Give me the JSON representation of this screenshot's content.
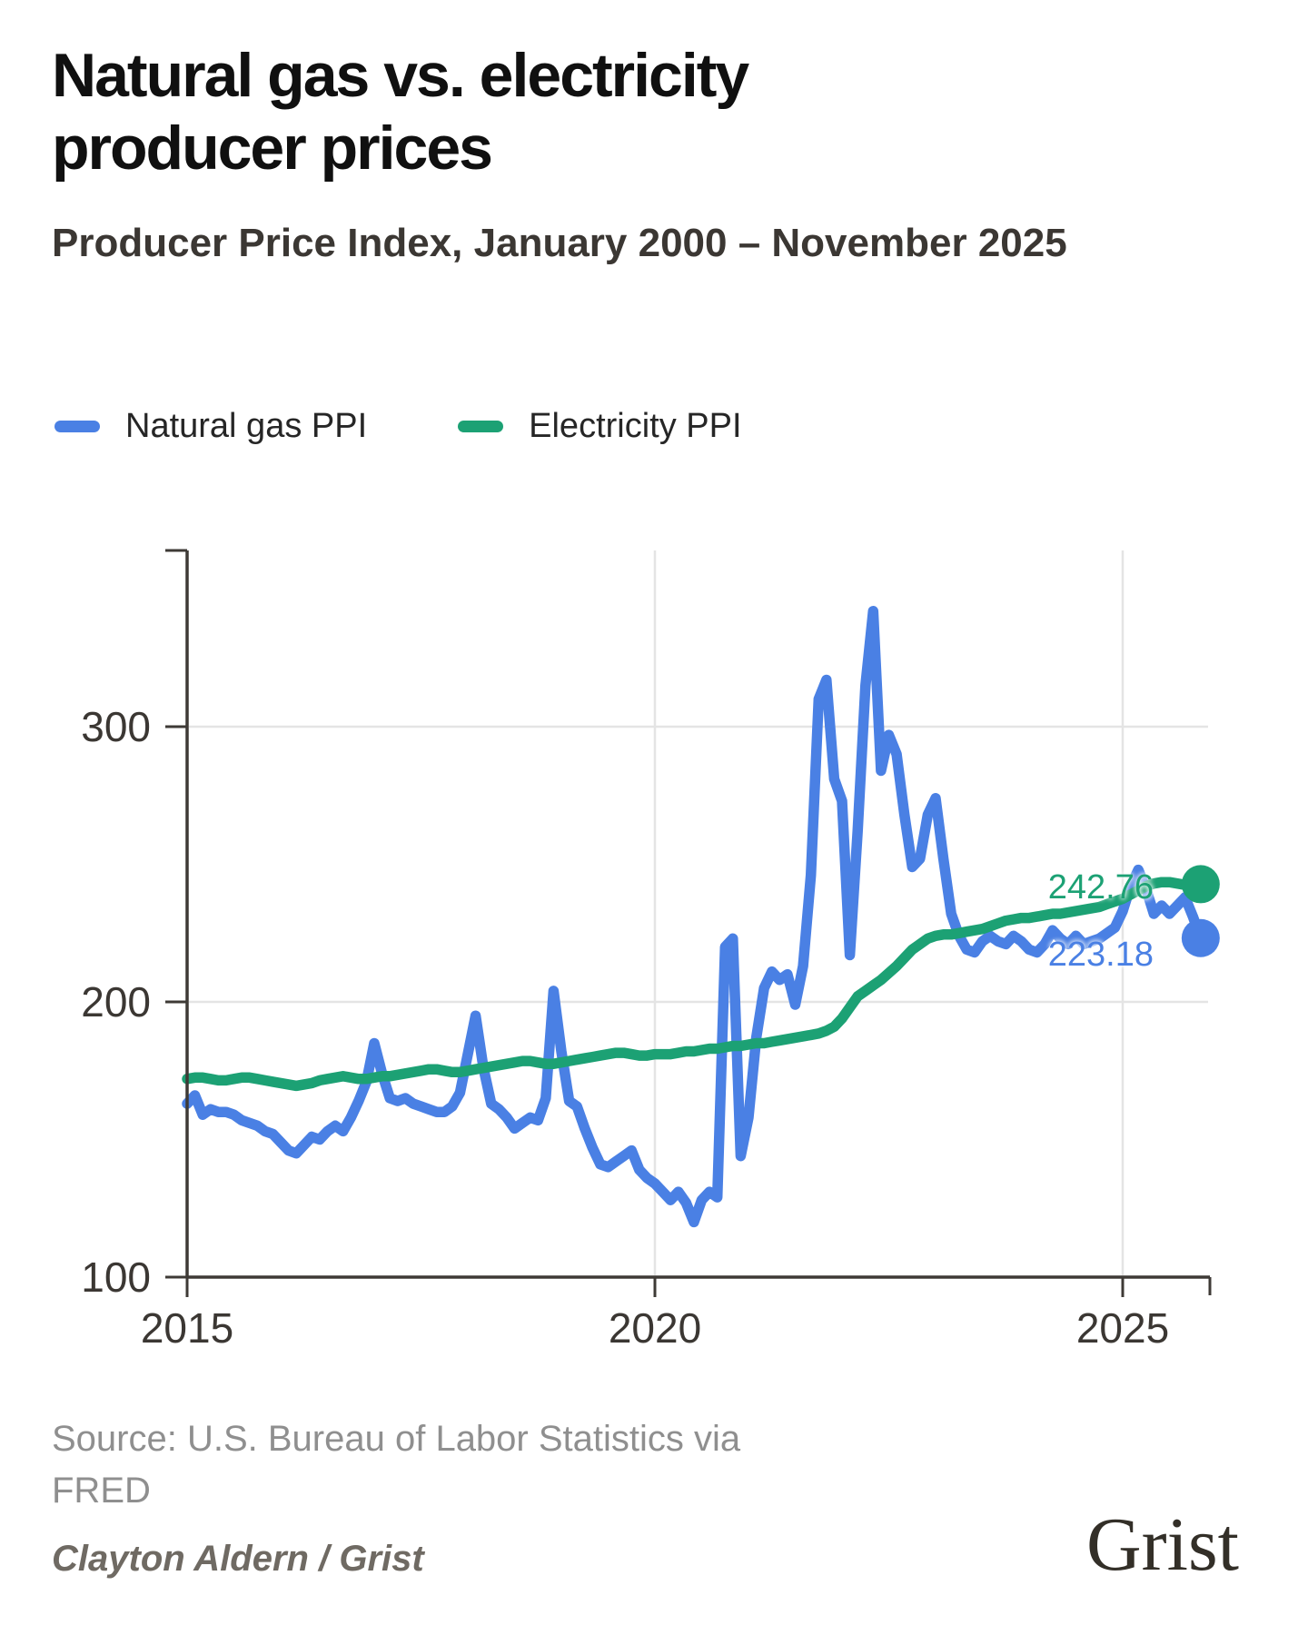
{
  "title": "Natural gas vs. electricity producer prices",
  "subtitle": "Producer Price Index, January 2000 – November 2025",
  "legend": [
    {
      "label": "Natural gas PPI",
      "color": "#4a80e4"
    },
    {
      "label": "Electricity PPI",
      "color": "#1ca174"
    }
  ],
  "annotations": {
    "electricity_end": "242.76",
    "natural_gas_end": "223.18"
  },
  "source": {
    "line1": "Source: U.S. Bureau of Labor Statistics via",
    "line2": "FRED"
  },
  "credit": "Clayton Aldern / Grist",
  "logo_text": "Grist",
  "colors": {
    "natural_gas": "#4a80e4",
    "electricity": "#1ca174",
    "axis": "#3e3a36",
    "grid": "#e4e4e4",
    "tick_label": "#3b3733"
  },
  "chart_data": {
    "type": "line",
    "title": "Natural gas vs. electricity producer prices",
    "xlabel": "",
    "ylabel": "Producer Price Index",
    "x_unit": "monthly, Jan 2015 – Nov 2025",
    "x_start_year": 2015,
    "x_end_label": "November 2025",
    "grid": true,
    "legend_position": "top",
    "ylim": [
      100,
      365
    ],
    "x_ticks": [
      {
        "value": 2015,
        "label": "2015"
      },
      {
        "value": 2020,
        "label": "2020"
      },
      {
        "value": 2025,
        "label": "2025"
      }
    ],
    "y_ticks": [
      {
        "value": 100,
        "label": "100"
      },
      {
        "value": 200,
        "label": "200"
      },
      {
        "value": 300,
        "label": "300"
      }
    ],
    "series": [
      {
        "name": "Natural gas PPI",
        "color": "#4a80e4",
        "end_value": 223.18,
        "values": [
          163,
          166,
          159,
          161,
          160,
          160,
          159,
          157,
          156,
          155,
          153,
          152,
          149,
          146,
          145,
          148,
          151,
          150,
          153,
          155,
          153,
          158,
          164,
          171,
          185,
          174,
          165,
          164,
          165,
          163,
          162,
          161,
          160,
          160,
          162,
          167,
          181,
          195,
          176,
          163,
          161,
          158,
          154,
          156,
          158,
          157,
          165,
          204,
          182,
          164,
          162,
          154,
          147,
          141,
          140,
          142,
          144,
          146,
          139,
          136,
          134,
          131,
          128,
          131,
          127,
          120,
          128,
          131,
          129,
          220,
          223,
          144,
          158,
          187,
          205,
          211,
          208,
          210,
          199,
          213,
          246,
          310,
          317,
          281,
          273,
          217,
          262,
          315,
          342,
          284,
          297,
          290,
          268,
          249,
          252,
          268,
          274,
          252,
          232,
          224,
          219,
          218,
          222,
          224,
          222,
          221,
          224,
          222,
          219,
          218,
          221,
          226,
          223,
          221,
          224,
          221,
          222,
          223,
          225,
          227,
          233,
          242,
          248,
          241,
          232,
          235,
          232,
          235,
          238,
          231,
          223.18
        ]
      },
      {
        "name": "Electricity PPI",
        "color": "#1ca174",
        "end_value": 242.76,
        "values": [
          172,
          172.5,
          172.5,
          172,
          171.5,
          171.5,
          172,
          172.5,
          172.5,
          172,
          171.5,
          171,
          170.5,
          170,
          169.5,
          170,
          170.5,
          171.5,
          172,
          172.5,
          173,
          172.5,
          172,
          172,
          172.5,
          173,
          173,
          173.5,
          174,
          174.5,
          175,
          175.5,
          175.5,
          175,
          174.5,
          174.5,
          175,
          175.5,
          176,
          176.5,
          177,
          177.5,
          178,
          178.5,
          178.5,
          178,
          177.5,
          177.5,
          178,
          178.5,
          179,
          179.5,
          180,
          180.5,
          181,
          181.5,
          181.5,
          181,
          180.5,
          180.5,
          181,
          181,
          181,
          181.5,
          182,
          182,
          182.5,
          183,
          183,
          183.5,
          184,
          184,
          184.5,
          185,
          185,
          185.5,
          186,
          186.5,
          187,
          187.5,
          188,
          188.5,
          189.5,
          191,
          194,
          198,
          202,
          204,
          206,
          208,
          210.5,
          213,
          216,
          219,
          221,
          223,
          224,
          224.5,
          224.5,
          225,
          225.5,
          226,
          226.5,
          227.5,
          228.5,
          229.5,
          230,
          230.5,
          230.5,
          231,
          231.5,
          232,
          232,
          232.5,
          233,
          233.5,
          234,
          234.5,
          235.5,
          236.5,
          237.5,
          239,
          240.5,
          242,
          243,
          243.5,
          243.5,
          243,
          242.5,
          242.5,
          242.76
        ]
      }
    ]
  }
}
